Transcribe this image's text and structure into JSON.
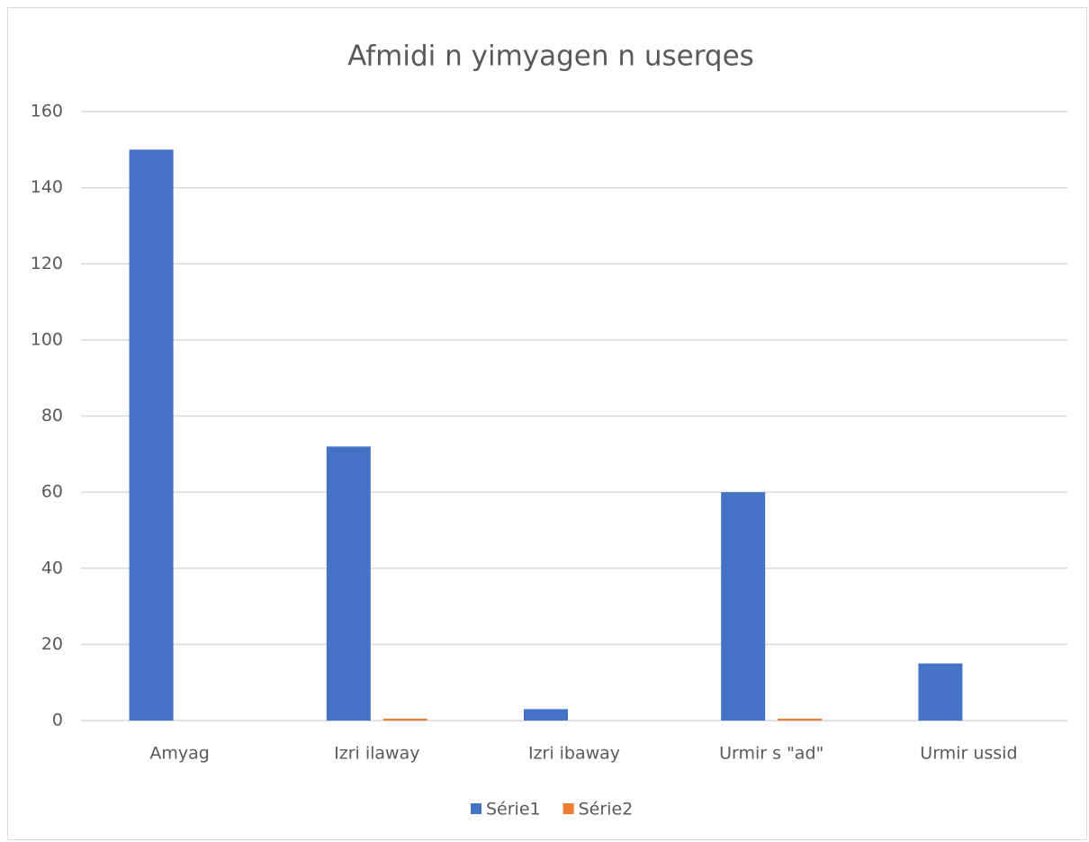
{
  "chart_data": {
    "type": "bar",
    "title": "Afmidi n yimyagen n userqes",
    "categories": [
      "Amyag",
      "Izri ilaway",
      "Izri ibaway",
      "Urmir s \"ad\"",
      "Urmir ussid"
    ],
    "series": [
      {
        "name": "Série1",
        "color": "#4472c4",
        "values": [
          150,
          72,
          3,
          60,
          15
        ]
      },
      {
        "name": "Série2",
        "color": "#ed7d31",
        "values": [
          0,
          0.5,
          0,
          0.5,
          0
        ]
      }
    ],
    "ylim": [
      0,
      160
    ],
    "yticks": [
      0,
      20,
      40,
      60,
      80,
      100,
      120,
      140,
      160
    ],
    "grid": true,
    "legend": "bottom"
  }
}
